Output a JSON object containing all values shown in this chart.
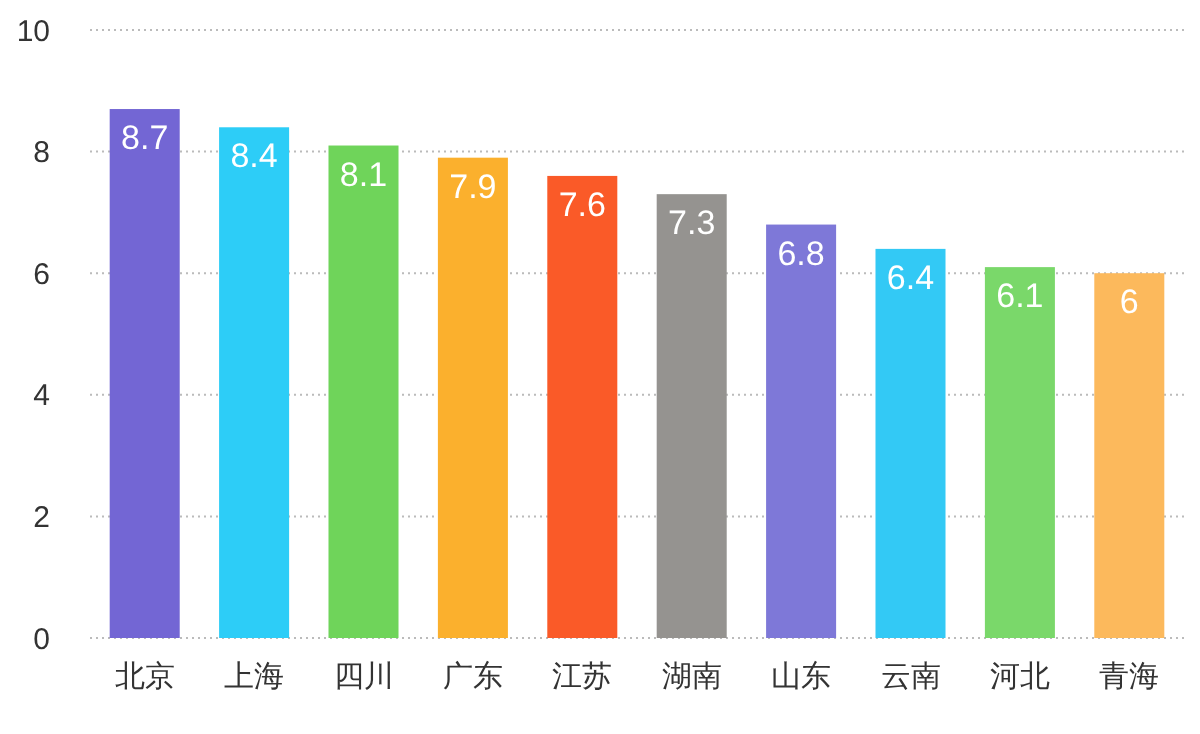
{
  "chart_data": {
    "type": "bar",
    "categories": [
      "北京",
      "上海",
      "四川",
      "广东",
      "江苏",
      "湖南",
      "山东",
      "云南",
      "河北",
      "青海"
    ],
    "values": [
      8.7,
      8.4,
      8.1,
      7.9,
      7.6,
      7.3,
      6.8,
      6.4,
      6.1,
      6
    ],
    "colors": [
      "#7366d4",
      "#2dcdf7",
      "#6fd45a",
      "#fbb02d",
      "#fa5a28",
      "#959390",
      "#7e78d8",
      "#33c9f5",
      "#7ad86a",
      "#fcb95c"
    ],
    "ylim": [
      0,
      10
    ],
    "yticks": [
      0,
      2,
      4,
      6,
      8,
      10
    ],
    "grid": "y",
    "data_labels": true
  }
}
